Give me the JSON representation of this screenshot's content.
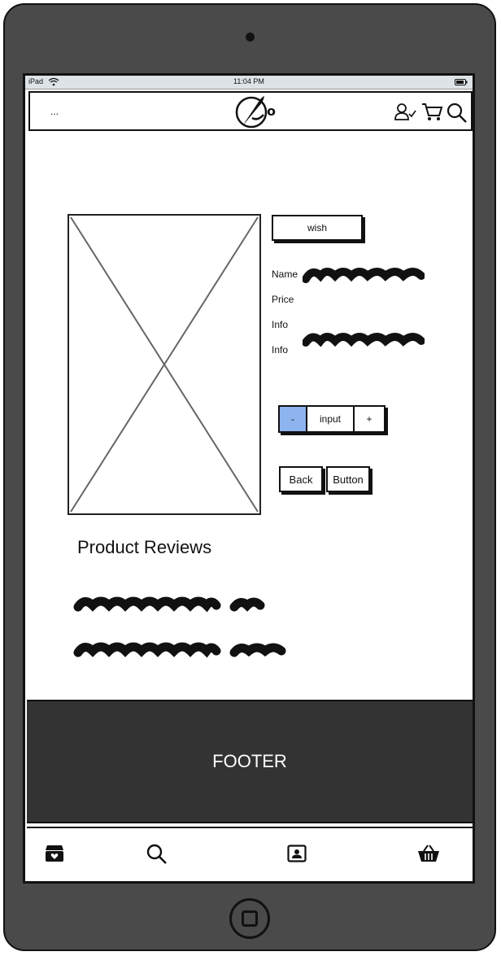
{
  "status_bar": {
    "device": "iPad",
    "time": "11:04 PM"
  },
  "header": {
    "menu_text": "...",
    "logo_text": "o"
  },
  "product": {
    "wish_label": "wish",
    "name_label": "Name",
    "price_label": "Price",
    "info_label_1": "Info",
    "info_label_2": "Info"
  },
  "quantity": {
    "minus_label": "-",
    "input_label": "input",
    "plus_label": "+"
  },
  "actions": {
    "back_label": "Back",
    "button_label": "Button"
  },
  "reviews": {
    "title": "Product Reviews"
  },
  "footer": {
    "label": "FOOTER"
  },
  "tabbar": {
    "items": [
      "store-icon",
      "search-icon",
      "contact-card-icon",
      "basket-icon"
    ]
  },
  "colors": {
    "device": "#4a4a4a",
    "footer": "#333333",
    "stepper_highlight": "#8eb4f0",
    "statusbar": "#dde3e6"
  }
}
